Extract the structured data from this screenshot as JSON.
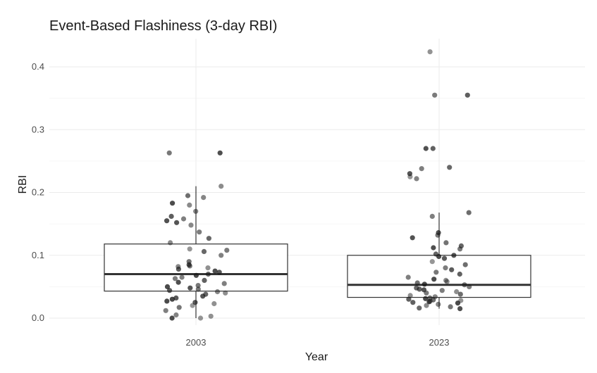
{
  "chart_data": {
    "type": "boxplot",
    "title": "Event-Based Flashiness (3-day RBI)",
    "xlabel": "Year",
    "ylabel": "RBI",
    "categories": [
      "2003",
      "2023"
    ],
    "ylim": [
      -0.01,
      0.44
    ],
    "yticks": [
      0.0,
      0.1,
      0.2,
      0.3,
      0.4
    ],
    "ytick_labels": [
      "0.0",
      "0.1",
      "0.2",
      "0.3",
      "0.4"
    ],
    "grid": true,
    "box_fill": "#ffffff",
    "box_stroke": "#333333",
    "point_color": "#1a1a1a",
    "boxes": [
      {
        "category": "2003",
        "whisker_low": 0.0,
        "q1": 0.043,
        "median": 0.07,
        "q3": 0.118,
        "whisker_high": 0.21
      },
      {
        "category": "2023",
        "whisker_low": 0.015,
        "q1": 0.033,
        "median": 0.053,
        "q3": 0.1,
        "whisker_high": 0.168
      }
    ],
    "points": [
      {
        "category": "2003",
        "values": [
          0.263,
          0.263,
          0.21,
          0.195,
          0.192,
          0.183,
          0.18,
          0.17,
          0.162,
          0.158,
          0.155,
          0.152,
          0.148,
          0.137,
          0.127,
          0.12,
          0.11,
          0.108,
          0.106,
          0.1,
          0.09,
          0.085,
          0.083,
          0.082,
          0.08,
          0.078,
          0.075,
          0.073,
          0.07,
          0.068,
          0.065,
          0.063,
          0.06,
          0.057,
          0.055,
          0.052,
          0.05,
          0.048,
          0.046,
          0.044,
          0.042,
          0.04,
          0.038,
          0.035,
          0.032,
          0.03,
          0.027,
          0.025,
          0.023,
          0.02,
          0.017,
          0.012,
          0.005,
          0.003,
          0.0,
          0.0
        ]
      },
      {
        "category": "2023",
        "values": [
          0.424,
          0.355,
          0.355,
          0.27,
          0.27,
          0.24,
          0.238,
          0.23,
          0.225,
          0.222,
          0.168,
          0.162,
          0.136,
          0.132,
          0.128,
          0.12,
          0.115,
          0.112,
          0.11,
          0.102,
          0.1,
          0.098,
          0.095,
          0.09,
          0.085,
          0.08,
          0.077,
          0.073,
          0.07,
          0.065,
          0.062,
          0.06,
          0.058,
          0.056,
          0.054,
          0.053,
          0.05,
          0.048,
          0.046,
          0.045,
          0.044,
          0.042,
          0.04,
          0.038,
          0.036,
          0.034,
          0.032,
          0.031,
          0.03,
          0.029,
          0.028,
          0.027,
          0.026,
          0.025,
          0.024,
          0.022,
          0.02,
          0.018,
          0.016,
          0.015
        ]
      }
    ]
  }
}
